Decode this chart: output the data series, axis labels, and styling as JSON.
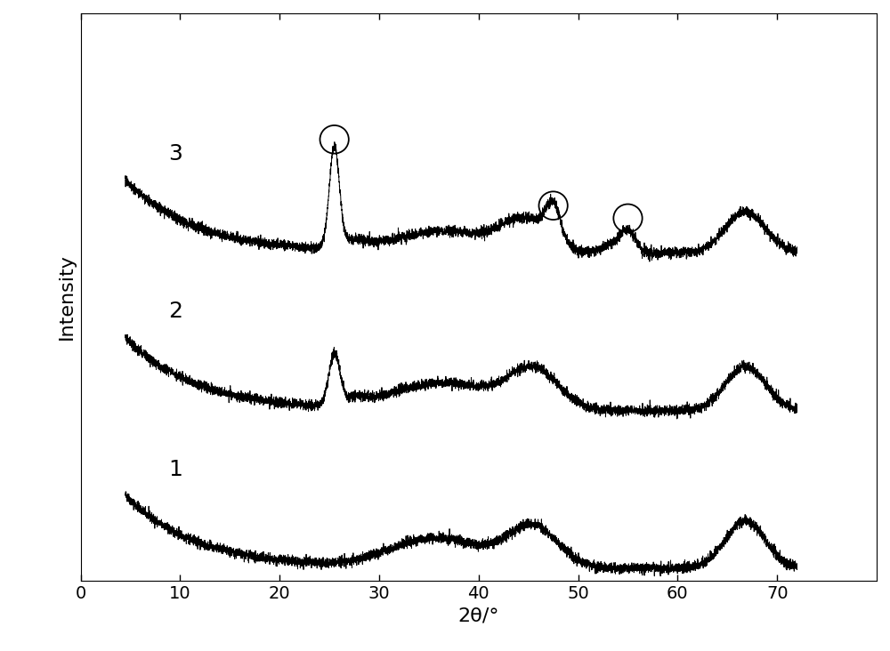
{
  "title": "",
  "xlabel": "2θ/°",
  "ylabel": "Intensity",
  "xlim": [
    0,
    80
  ],
  "xticks": [
    0,
    10,
    20,
    30,
    40,
    50,
    60,
    70
  ],
  "figsize": [
    10.0,
    7.32
  ],
  "dpi": 100,
  "background_color": "#ffffff",
  "line_color": "#000000",
  "label_fontsize": 16,
  "tick_fontsize": 14,
  "curve_labels": [
    "1",
    "2",
    "3"
  ],
  "curve_offsets": [
    0.0,
    0.25,
    0.5
  ],
  "seed": 42,
  "noise_scale": 0.004,
  "bg_amplitude": 0.22,
  "bg_decay": 7.0
}
